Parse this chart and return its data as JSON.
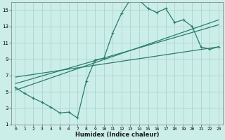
{
  "xlabel": "Humidex (Indice chaleur)",
  "bg_color": "#cceee8",
  "line_color": "#2a7d6e",
  "grid_color": "#aad4cc",
  "xlim": [
    -0.5,
    23.5
  ],
  "ylim": [
    1,
    16
  ],
  "xticks": [
    0,
    1,
    2,
    3,
    4,
    5,
    6,
    7,
    8,
    9,
    10,
    11,
    12,
    13,
    14,
    15,
    16,
    17,
    18,
    19,
    20,
    21,
    22,
    23
  ],
  "yticks": [
    1,
    3,
    5,
    7,
    9,
    11,
    13,
    15
  ],
  "data_x": [
    0,
    1,
    2,
    3,
    4,
    5,
    6,
    7,
    8,
    9,
    10,
    11,
    12,
    13,
    14,
    15,
    16,
    17,
    18,
    19,
    20,
    21,
    22,
    23
  ],
  "data_y": [
    5.5,
    4.8,
    4.2,
    3.7,
    3.1,
    2.4,
    2.5,
    1.8,
    6.3,
    8.9,
    9.1,
    12.2,
    14.6,
    16.3,
    16.2,
    15.2,
    14.7,
    15.2,
    13.5,
    13.8,
    13.0,
    10.5,
    10.2,
    10.5
  ],
  "trend1_x": [
    0,
    23
  ],
  "trend1_y": [
    5.2,
    13.8
  ],
  "trend2_x": [
    0,
    23
  ],
  "trend2_y": [
    6.0,
    13.2
  ],
  "trend3_x": [
    0,
    23
  ],
  "trend3_y": [
    6.8,
    10.5
  ],
  "xlabel_fontsize": 6,
  "tick_fontsize": 5,
  "linewidth": 0.9,
  "markersize": 2.5
}
